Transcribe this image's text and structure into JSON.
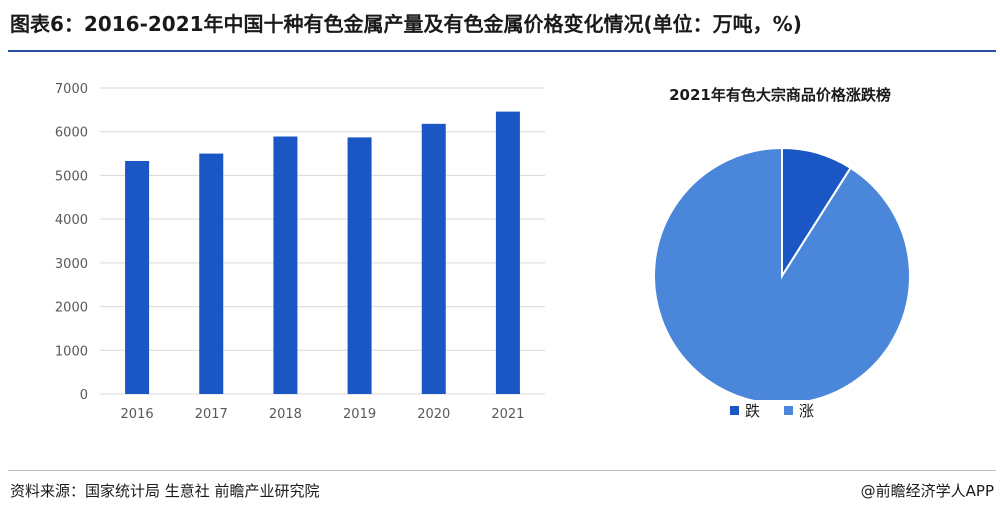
{
  "header": {
    "title": "图表6：2016-2021年中国十种有色金属产量及有色金属价格变化情况(单位：万吨，%)"
  },
  "chart_data": [
    {
      "type": "bar",
      "categories": [
        "2016",
        "2017",
        "2018",
        "2019",
        "2020",
        "2021"
      ],
      "values": [
        5330,
        5500,
        5890,
        5870,
        6180,
        6460
      ],
      "yticks": [
        "0",
        "1000",
        "2000",
        "3000",
        "4000",
        "5000",
        "6000",
        "7000"
      ],
      "ylim": [
        0,
        7000
      ],
      "grid": true,
      "color": "#1a56c4"
    },
    {
      "type": "pie",
      "title": "2021年有色大宗商品价格涨跌榜",
      "slices": [
        {
          "label": "跌",
          "value": 9,
          "color": "#1a56c4"
        },
        {
          "label": "涨",
          "value": 91,
          "color": "#4a86d9"
        }
      ],
      "legend_position": "bottom"
    }
  ],
  "footer": {
    "source": "资料来源：国家统计局 生意社 前瞻产业研究院",
    "brand": "@前瞻经济学人APP"
  }
}
